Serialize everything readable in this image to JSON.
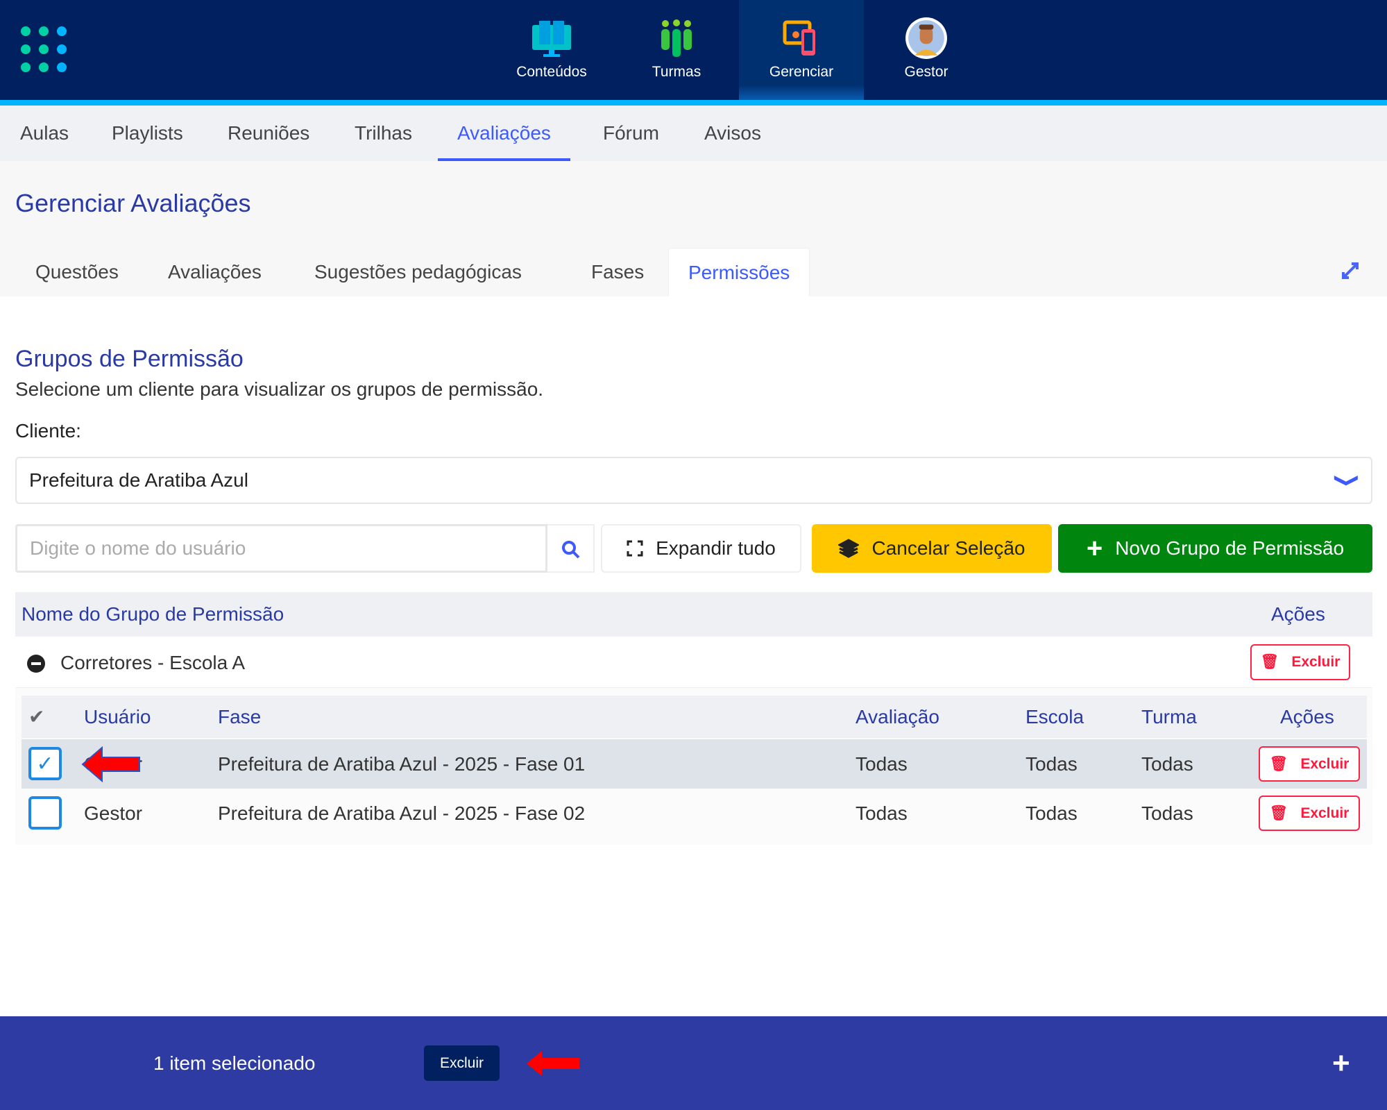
{
  "header": {
    "nav": [
      {
        "label": "Conteúdos",
        "icon": "monitor-book-icon"
      },
      {
        "label": "Turmas",
        "icon": "people-icon"
      },
      {
        "label": "Gerenciar",
        "icon": "devices-gear-icon",
        "active": true
      },
      {
        "label": "Gestor",
        "icon": "avatar"
      }
    ]
  },
  "subnav": [
    {
      "label": "Aulas"
    },
    {
      "label": "Playlists"
    },
    {
      "label": "Reuniões"
    },
    {
      "label": "Trilhas"
    },
    {
      "label": "Avaliações",
      "active": true
    },
    {
      "label": "Fórum"
    },
    {
      "label": "Avisos"
    }
  ],
  "page_title": "Gerenciar Avaliações",
  "tabs": [
    {
      "label": "Questões"
    },
    {
      "label": "Avaliações"
    },
    {
      "label": "Sugestões pedagógicas"
    },
    {
      "label": "Fases"
    },
    {
      "label": "Permissões",
      "active": true
    }
  ],
  "section": {
    "title": "Grupos de Permissão",
    "subtitle": "Selecione um cliente para visualizar os grupos de permissão.",
    "client_label": "Cliente:",
    "client_value": "Prefeitura de Aratiba Azul"
  },
  "toolbar": {
    "search_placeholder": "Digite o nome do usuário",
    "expand": "Expandir tudo",
    "cancel": "Cancelar Seleção",
    "new_group": "Novo Grupo de Permissão"
  },
  "table": {
    "headers": {
      "name": "Nome do Grupo de Permissão",
      "actions": "Ações"
    },
    "group": {
      "name": "Corretores - Escola A",
      "delete": "Excluir"
    },
    "inner_headers": {
      "user": "Usuário",
      "phase": "Fase",
      "evaluation": "Avaliação",
      "school": "Escola",
      "class": "Turma",
      "actions": "Ações"
    },
    "rows": [
      {
        "user": "Gestor",
        "phase": "Prefeitura de Aratiba Azul - 2025 - Fase 01",
        "evaluation": "Todas",
        "school": "Todas",
        "class": "Todas",
        "delete": "Excluir",
        "checked": true
      },
      {
        "user": "Gestor",
        "phase": "Prefeitura de Aratiba Azul - 2025 - Fase 02",
        "evaluation": "Todas",
        "school": "Todas",
        "class": "Todas",
        "delete": "Excluir",
        "checked": false
      }
    ]
  },
  "bottom_bar": {
    "selected_text": "1 item selecionado",
    "delete": "Excluir"
  },
  "colors": {
    "header": "#00205f",
    "accent": "#3d5afe",
    "title": "#2a3aa5",
    "warning": "#ffc700",
    "success": "#00860f",
    "danger": "#ff1a3d",
    "bottom_bar": "#2e3ba3"
  }
}
